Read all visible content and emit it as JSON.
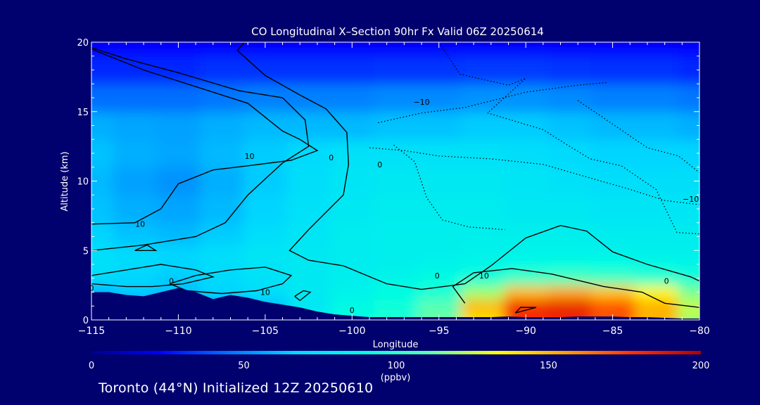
{
  "footer": {
    "text": "Toronto (44°N) Initialized 12Z 20250610"
  },
  "chart_data": {
    "type": "heatmap",
    "title": "CO Longitudinal X–Section 90hr  Fx Valid 06Z 20250614",
    "xlabel": "Longitude",
    "ylabel": "Altitude (km)",
    "xlim": [
      -115,
      -80
    ],
    "ylim": [
      0,
      20
    ],
    "x_ticks": [
      -115,
      -110,
      -105,
      -100,
      -95,
      -90,
      -85,
      -80
    ],
    "x_tick_labels": [
      "−115",
      "−110",
      "−105",
      "−100",
      "−95",
      "−90",
      "−85",
      "−80"
    ],
    "y_ticks": [
      0,
      5,
      10,
      15,
      20
    ],
    "colorbar": {
      "label": "(ppbv)",
      "range": [
        0,
        200
      ],
      "ticks": [
        0,
        50,
        100,
        150,
        200
      ],
      "colors": [
        "#00008a",
        "#0000ff",
        "#0070ff",
        "#00d8ff",
        "#00ffe0",
        "#60ffb0",
        "#ffff00",
        "#ffa000",
        "#ff3000",
        "#b00000"
      ]
    },
    "field_note_units": "ppbv",
    "columns_lon": [
      -115,
      -112.5,
      -110,
      -107.5,
      -105,
      -102.5,
      -100,
      -97.5,
      -95,
      -92.5,
      -90,
      -87.5,
      -85,
      -82.5,
      -80
    ],
    "rows_alt_km": [
      0,
      1,
      2,
      3,
      4,
      5,
      6,
      8,
      10,
      12,
      14,
      16,
      18,
      20
    ],
    "values": [
      [
        48,
        52,
        50,
        55,
        62,
        78,
        90,
        95,
        112,
        140,
        178,
        180,
        170,
        150,
        120
      ],
      [
        48,
        52,
        50,
        55,
        62,
        75,
        86,
        92,
        110,
        150,
        182,
        185,
        172,
        152,
        125
      ],
      [
        60,
        64,
        62,
        66,
        70,
        76,
        82,
        88,
        95,
        120,
        150,
        155,
        148,
        135,
        115
      ],
      [
        68,
        66,
        64,
        68,
        72,
        76,
        80,
        84,
        88,
        95,
        105,
        108,
        105,
        100,
        95
      ],
      [
        72,
        68,
        66,
        70,
        74,
        76,
        78,
        80,
        82,
        84,
        86,
        88,
        88,
        86,
        84
      ],
      [
        70,
        68,
        66,
        70,
        74,
        76,
        78,
        80,
        80,
        82,
        82,
        82,
        82,
        80,
        80
      ],
      [
        66,
        62,
        60,
        64,
        70,
        74,
        78,
        80,
        80,
        80,
        80,
        80,
        78,
        78,
        78
      ],
      [
        62,
        58,
        56,
        60,
        66,
        72,
        76,
        78,
        78,
        78,
        76,
        76,
        74,
        74,
        74
      ],
      [
        60,
        55,
        52,
        58,
        64,
        70,
        74,
        76,
        76,
        76,
        74,
        72,
        70,
        70,
        70
      ],
      [
        62,
        58,
        56,
        60,
        64,
        68,
        72,
        72,
        72,
        72,
        70,
        68,
        66,
        66,
        66
      ],
      [
        58,
        56,
        55,
        58,
        60,
        60,
        60,
        62,
        62,
        64,
        64,
        62,
        60,
        60,
        58
      ],
      [
        44,
        44,
        44,
        46,
        48,
        48,
        48,
        50,
        50,
        52,
        52,
        50,
        48,
        48,
        46
      ],
      [
        30,
        30,
        30,
        32,
        32,
        32,
        32,
        33,
        33,
        34,
        34,
        33,
        32,
        32,
        30
      ],
      [
        22,
        22,
        22,
        22,
        22,
        22,
        22,
        22,
        22,
        22,
        22,
        22,
        22,
        22,
        22
      ]
    ],
    "contour_labels": [
      "0",
      "10",
      "−10",
      "0",
      "10",
      "−10",
      "0",
      "0",
      "0",
      "10",
      "0",
      "0",
      "10"
    ],
    "terrain_lon": [
      -115,
      -114,
      -113,
      -112,
      -111,
      -110,
      -109,
      -108,
      -107,
      -106,
      -105,
      -104,
      -103,
      -102,
      -101,
      -100,
      -99,
      -98,
      -97,
      -96,
      -95,
      -94,
      -93,
      -92,
      -91,
      -90,
      -89,
      -88,
      -87,
      -86,
      -85,
      -84,
      -83,
      -82,
      -81,
      -80
    ],
    "terrain_km": [
      2.0,
      2.0,
      1.8,
      1.7,
      2.0,
      2.3,
      2.0,
      1.5,
      1.8,
      1.6,
      1.3,
      1.1,
      0.9,
      0.6,
      0.4,
      0.3,
      0.2,
      0.2,
      0.2,
      0.2,
      0.2,
      0.2,
      0.2,
      0.2,
      0.25,
      0.2,
      0.2,
      0.2,
      0.25,
      0.25,
      0.25,
      0.2,
      0.2,
      0.15,
      0.1,
      0.1
    ]
  }
}
